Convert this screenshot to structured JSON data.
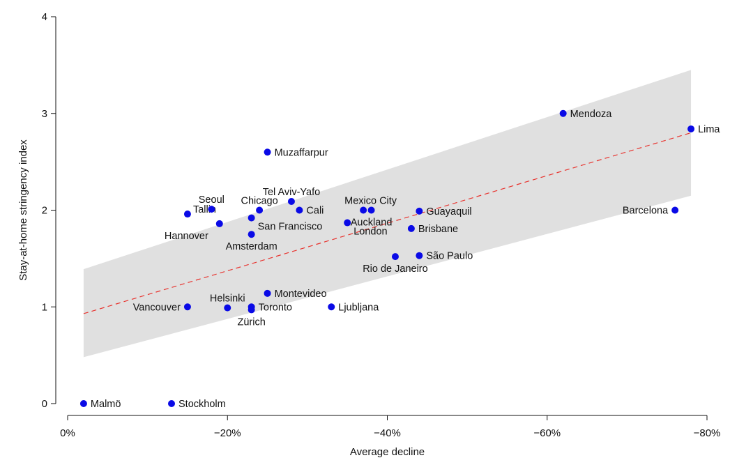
{
  "chart_data": {
    "type": "scatter",
    "title": "",
    "xlabel": "Average decline",
    "ylabel": "Stay-at-home stringency index",
    "xlim": [
      0,
      -80
    ],
    "ylim": [
      0,
      4
    ],
    "x_ticks": [
      {
        "value": 0,
        "label": "0%"
      },
      {
        "value": -20,
        "label": "−20%"
      },
      {
        "value": -40,
        "label": "−40%"
      },
      {
        "value": -60,
        "label": "−60%"
      },
      {
        "value": -80,
        "label": "−80%"
      }
    ],
    "y_ticks": [
      {
        "value": 0,
        "label": "0"
      },
      {
        "value": 1,
        "label": "1"
      },
      {
        "value": 2,
        "label": "2"
      },
      {
        "value": 3,
        "label": "3"
      },
      {
        "value": 4,
        "label": "4"
      }
    ],
    "colors": {
      "point": "#0a0ae6",
      "fit_line": "#e8332e",
      "band": "#e0e0e0"
    },
    "fit_line": {
      "x": [
        -2,
        -78
      ],
      "y": [
        0.93,
        2.8
      ]
    },
    "confidence_band": {
      "x": [
        -2,
        -78
      ],
      "upper": [
        1.39,
        3.45
      ],
      "lower": [
        0.48,
        2.15
      ]
    },
    "points": [
      {
        "label": "Malmö",
        "x": -2,
        "y": 0,
        "anchor": "right"
      },
      {
        "label": "Stockholm",
        "x": -13,
        "y": 0,
        "anchor": "right"
      },
      {
        "label": "Vancouver",
        "x": -15,
        "y": 1,
        "anchor": "left"
      },
      {
        "label": "Helsinki",
        "x": -20,
        "y": 0.99,
        "anchor": "above"
      },
      {
        "label": "Toronto",
        "x": -23,
        "y": 1.0,
        "anchor": "right"
      },
      {
        "label": "Zürich",
        "x": -23,
        "y": 0.97,
        "anchor": "below"
      },
      {
        "label": "Montevideo",
        "x": -25,
        "y": 1.14,
        "anchor": "right"
      },
      {
        "label": "Ljubljana",
        "x": -33,
        "y": 1.0,
        "anchor": "right"
      },
      {
        "label": "Hannover",
        "x": -19,
        "y": 1.86,
        "anchor": "left-below"
      },
      {
        "label": "Tallin",
        "x": -15,
        "y": 1.96,
        "anchor": "right-above"
      },
      {
        "label": "Seoul",
        "x": -18,
        "y": 2.01,
        "anchor": "above"
      },
      {
        "label": "Amsterdam",
        "x": -23,
        "y": 1.75,
        "anchor": "below"
      },
      {
        "label": "San Francisco",
        "x": -23,
        "y": 1.92,
        "anchor": "right-below"
      },
      {
        "label": "Chicago",
        "x": -24,
        "y": 2.0,
        "anchor": "above"
      },
      {
        "label": "Muzaffarpur",
        "x": -25,
        "y": 2.6,
        "anchor": "right"
      },
      {
        "label": "Tel Aviv-Yafo",
        "x": -28,
        "y": 2.09,
        "anchor": "above"
      },
      {
        "label": "Cali",
        "x": -29,
        "y": 2.0,
        "anchor": "right"
      },
      {
        "label": "London",
        "x": -35,
        "y": 1.87,
        "anchor": "right-below"
      },
      {
        "label": "Mexico City",
        "x": -37,
        "y": 2.0,
        "anchor": "above-right"
      },
      {
        "label": "Auckland",
        "x": -38,
        "y": 2.0,
        "anchor": "below"
      },
      {
        "label": "Rio de Janeiro",
        "x": -41,
        "y": 1.52,
        "anchor": "below"
      },
      {
        "label": "Brisbane",
        "x": -43,
        "y": 1.81,
        "anchor": "right"
      },
      {
        "label": "Guayaquil",
        "x": -44,
        "y": 1.99,
        "anchor": "right"
      },
      {
        "label": "São Paulo",
        "x": -44,
        "y": 1.53,
        "anchor": "right"
      },
      {
        "label": "Mendoza",
        "x": -62,
        "y": 3.0,
        "anchor": "right"
      },
      {
        "label": "Barcelona",
        "x": -76,
        "y": 2.0,
        "anchor": "left"
      },
      {
        "label": "Lima",
        "x": -78,
        "y": 2.84,
        "anchor": "right"
      }
    ]
  }
}
